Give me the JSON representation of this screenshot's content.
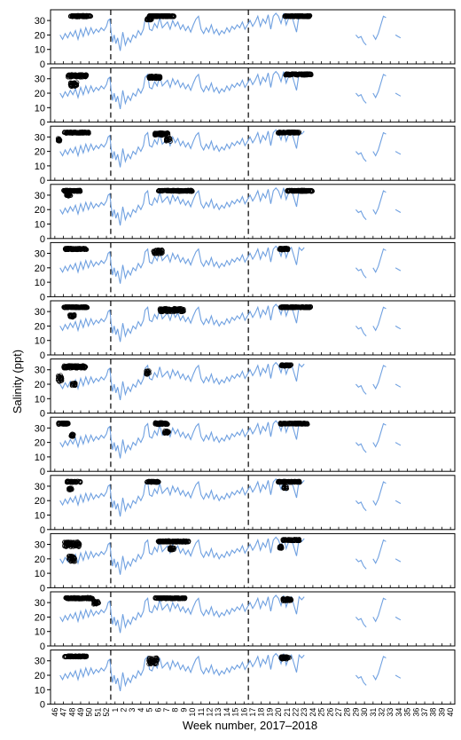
{
  "chart_data": {
    "type": "line",
    "xlabel": "Week number, 2017–2018",
    "ylabel": "Salinity (ppt)",
    "panel_count": 12,
    "ylim": [
      0,
      35
    ],
    "yticks": [
      "0",
      "10",
      "20",
      "30"
    ],
    "week_labels": [
      "46",
      "47",
      "48",
      "49",
      "50",
      "51",
      "52",
      "1",
      "2",
      "3",
      "4",
      "5",
      "6",
      "7",
      "8",
      "9",
      "10",
      "11",
      "12",
      "13",
      "14",
      "15",
      "16",
      "17",
      "18",
      "19",
      "20",
      "21",
      "22",
      "23",
      "24",
      "25",
      "26",
      "27",
      "28",
      "29",
      "30",
      "31",
      "32",
      "33",
      "34",
      "35",
      "36",
      "37",
      "38",
      "39",
      "40"
    ],
    "dashed_lines_at_week_index": [
      6.5,
      22.5
    ],
    "colors": {
      "salinity_line": "#6fa0e0",
      "observations": "#000000",
      "dashed": "#000000"
    },
    "salinity_series": [
      [
        0.6,
        20
      ],
      [
        0.9,
        17
      ],
      [
        1.2,
        21
      ],
      [
        1.5,
        18
      ],
      [
        1.8,
        22
      ],
      [
        2.1,
        19
      ],
      [
        2.4,
        23
      ],
      [
        2.7,
        17
      ],
      [
        3.0,
        24
      ],
      [
        3.3,
        19
      ],
      [
        3.6,
        25
      ],
      [
        3.9,
        20
      ],
      [
        4.2,
        25
      ],
      [
        4.5,
        21
      ],
      [
        4.8,
        24
      ],
      [
        5.1,
        22
      ],
      [
        5.4,
        25
      ],
      [
        5.7,
        23
      ],
      [
        6.0,
        26
      ],
      [
        6.2,
        30
      ],
      [
        6.4,
        31
      ],
      [
        6.55,
        22
      ],
      [
        6.7,
        15
      ],
      [
        6.9,
        20
      ],
      [
        7.1,
        14
      ],
      [
        7.3,
        18
      ],
      [
        7.6,
        9
      ],
      [
        7.9,
        22
      ],
      [
        8.2,
        13
      ],
      [
        8.5,
        18
      ],
      [
        8.8,
        15
      ],
      [
        9.1,
        20
      ],
      [
        9.4,
        18
      ],
      [
        9.7,
        23
      ],
      [
        10.0,
        20
      ],
      [
        10.3,
        24
      ],
      [
        10.5,
        31
      ],
      [
        10.8,
        33
      ],
      [
        11.0,
        24
      ],
      [
        11.3,
        23
      ],
      [
        11.6,
        28
      ],
      [
        11.9,
        25
      ],
      [
        12.2,
        32
      ],
      [
        12.5,
        25
      ],
      [
        12.8,
        27
      ],
      [
        13.1,
        29
      ],
      [
        13.4,
        24
      ],
      [
        13.7,
        30
      ],
      [
        14.0,
        26
      ],
      [
        14.3,
        29
      ],
      [
        14.6,
        24
      ],
      [
        14.9,
        27
      ],
      [
        15.2,
        23
      ],
      [
        15.5,
        26
      ],
      [
        15.8,
        22
      ],
      [
        16.1,
        27
      ],
      [
        16.4,
        31
      ],
      [
        16.7,
        33
      ],
      [
        17.0,
        24
      ],
      [
        17.3,
        21
      ],
      [
        17.6,
        25
      ],
      [
        17.9,
        22
      ],
      [
        18.2,
        27
      ],
      [
        18.5,
        21
      ],
      [
        18.8,
        24
      ],
      [
        19.1,
        20
      ],
      [
        19.4,
        23
      ],
      [
        19.7,
        21
      ],
      [
        20.0,
        25
      ],
      [
        20.3,
        22
      ],
      [
        20.6,
        26
      ],
      [
        20.9,
        24
      ],
      [
        21.2,
        27
      ],
      [
        21.5,
        25
      ],
      [
        21.8,
        29
      ],
      [
        22.1,
        24
      ],
      [
        22.4,
        27
      ],
      [
        22.7,
        30
      ],
      [
        23.0,
        26
      ],
      [
        23.3,
        29
      ],
      [
        23.6,
        33
      ],
      [
        23.9,
        26
      ],
      [
        24.2,
        31
      ],
      [
        24.5,
        28
      ],
      [
        24.8,
        34
      ],
      [
        25.1,
        24
      ],
      [
        25.4,
        33
      ],
      [
        25.7,
        35
      ],
      [
        26.0,
        33
      ],
      [
        26.3,
        28
      ],
      [
        26.6,
        35
      ],
      [
        26.9,
        27
      ],
      [
        27.2,
        32
      ],
      [
        27.5,
        34
      ],
      [
        27.8,
        28
      ],
      [
        28.1,
        22
      ],
      [
        28.4,
        34
      ],
      [
        28.7,
        32
      ],
      [
        29.0,
        34
      ]
    ],
    "salinity_series_late": [
      [
        [
          35.0,
          20
        ],
        [
          35.3,
          18
        ],
        [
          35.6,
          19
        ],
        [
          35.9,
          15
        ],
        [
          36.2,
          13
        ]
      ],
      [
        [
          37.0,
          20
        ],
        [
          37.3,
          17
        ],
        [
          37.6,
          21
        ],
        [
          37.9,
          27
        ],
        [
          38.2,
          33
        ],
        [
          38.5,
          32
        ]
      ],
      [
        [
          39.6,
          20
        ],
        [
          39.9,
          19
        ],
        [
          40.2,
          18
        ]
      ]
    ],
    "observations": [
      {
        "panel": 1,
        "clusters": [
          [
            3.0,
            33,
            2.4,
            1.2
          ],
          [
            12.4,
            33,
            3.0,
            1.0
          ],
          [
            28.2,
            33,
            3.0,
            1.0
          ],
          [
            11.0,
            31,
            0.6,
            1.5
          ]
        ]
      },
      {
        "panel": 2,
        "clusters": [
          [
            2.6,
            32,
            2.2,
            2.0
          ],
          [
            2.2,
            26,
            0.8,
            3.0
          ],
          [
            11.6,
            31,
            1.4,
            2.0
          ],
          [
            28.3,
            33,
            3.0,
            1.2
          ]
        ]
      },
      {
        "panel": 3,
        "clusters": [
          [
            2.5,
            33,
            3.0,
            1.0
          ],
          [
            0.5,
            28,
            0.3,
            2.0
          ],
          [
            12.4,
            32,
            1.6,
            2.0
          ],
          [
            13.2,
            28,
            0.5,
            2.5
          ],
          [
            27.2,
            33,
            2.5,
            1.0
          ]
        ]
      },
      {
        "panel": 4,
        "clusters": [
          [
            2.0,
            33,
            2.0,
            1.0
          ],
          [
            1.6,
            30,
            0.6,
            2.0
          ],
          [
            14.0,
            33,
            4.0,
            1.0
          ],
          [
            28.5,
            33,
            3.0,
            1.0
          ]
        ]
      },
      {
        "panel": 5,
        "clusters": [
          [
            2.4,
            33,
            2.6,
            1.2
          ],
          [
            12.0,
            31,
            1.1,
            3.0
          ],
          [
            26.6,
            33,
            1.0,
            1.5
          ]
        ]
      },
      {
        "panel": 6,
        "clusters": [
          [
            2.4,
            33,
            2.8,
            1.0
          ],
          [
            2.0,
            27,
            0.6,
            2.0
          ],
          [
            13.6,
            31,
            2.8,
            2.6
          ],
          [
            28.0,
            33,
            3.5,
            1.0
          ]
        ]
      },
      {
        "panel": 7,
        "clusters": [
          [
            2.3,
            32,
            2.6,
            2.0
          ],
          [
            0.6,
            24,
            0.5,
            5.0
          ],
          [
            2.2,
            20,
            0.4,
            2.0
          ],
          [
            10.8,
            28,
            0.4,
            3.0
          ],
          [
            26.9,
            33,
            1.2,
            1.2
          ]
        ]
      },
      {
        "panel": 8,
        "clusters": [
          [
            1.0,
            33,
            1.2,
            1.2
          ],
          [
            2.0,
            25,
            0.4,
            2.0
          ],
          [
            12.4,
            33,
            1.5,
            1.5
          ],
          [
            13.0,
            27,
            0.5,
            2.0
          ],
          [
            27.8,
            33,
            3.2,
            1.0
          ]
        ]
      },
      {
        "panel": 9,
        "clusters": [
          [
            2.2,
            33,
            1.6,
            1.0
          ],
          [
            1.8,
            28,
            0.4,
            1.5
          ],
          [
            11.4,
            33,
            1.4,
            1.0
          ],
          [
            27.2,
            33,
            2.6,
            1.0
          ],
          [
            26.8,
            29,
            0.4,
            1.5
          ]
        ]
      },
      {
        "panel": 10,
        "clusters": [
          [
            2.0,
            30,
            1.8,
            3.5
          ],
          [
            2.0,
            20,
            0.8,
            4.0
          ],
          [
            13.8,
            32,
            3.6,
            1.2
          ],
          [
            13.6,
            27,
            0.6,
            2.0
          ],
          [
            27.5,
            33,
            2.0,
            1.2
          ],
          [
            26.3,
            28,
            0.4,
            2.0
          ]
        ]
      },
      {
        "panel": 11,
        "clusters": [
          [
            2.8,
            33,
            3.2,
            1.2
          ],
          [
            4.8,
            30,
            0.6,
            2.5
          ],
          [
            13.4,
            33,
            3.5,
            1.0
          ],
          [
            27.0,
            32,
            1.0,
            2.0
          ]
        ]
      },
      {
        "panel": 12,
        "clusters": [
          [
            2.4,
            33,
            2.6,
            1.0
          ],
          [
            11.4,
            30,
            1.0,
            4.5
          ],
          [
            26.8,
            32,
            1.0,
            2.0
          ]
        ]
      }
    ]
  }
}
